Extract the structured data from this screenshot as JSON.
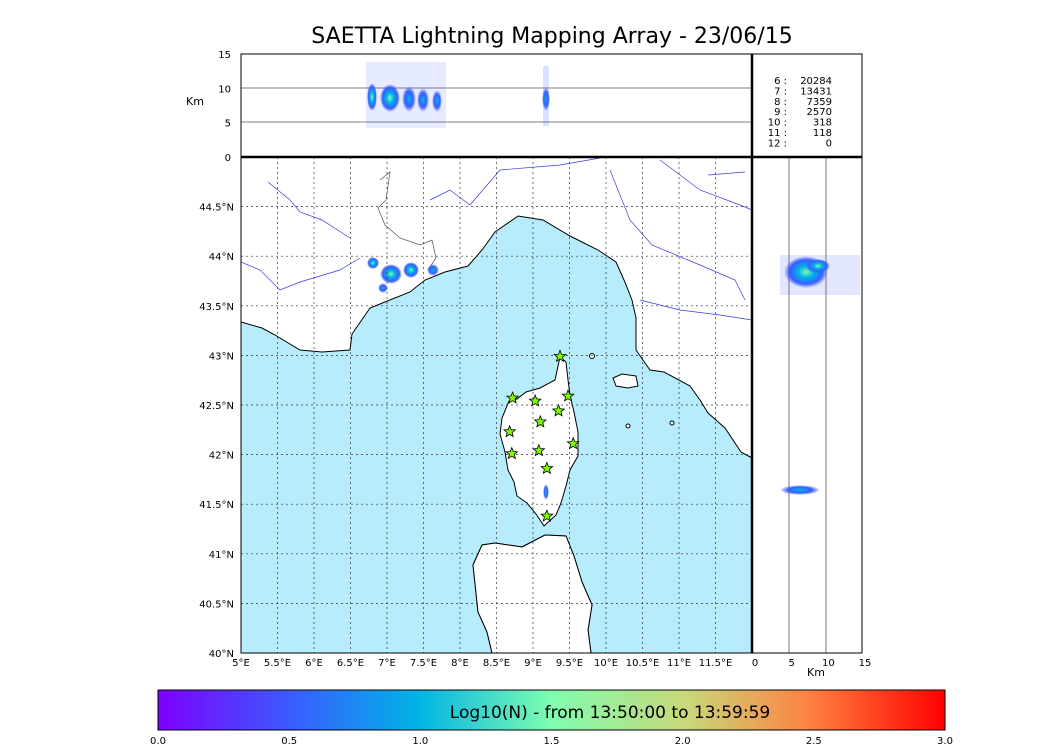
{
  "title": "SAETTA Lightning Mapping Array - 23/06/15",
  "colors": {
    "sea": "#b7ecfd",
    "station": "#7cfc00",
    "highlight": "#ff0000"
  },
  "alt_panel": {
    "ylabel": "Km",
    "yticks": [
      "0",
      "5",
      "10",
      "15"
    ],
    "counts": [
      {
        "label": "6 :",
        "value": "20284"
      },
      {
        "label": "7 :",
        "value": "13431"
      },
      {
        "label": "8 :",
        "value": "7359"
      },
      {
        "label": "9 :",
        "value": "2570"
      },
      {
        "label": "10 :",
        "value": "318"
      },
      {
        "label": "11 :",
        "value": "118"
      },
      {
        "label": "12 :",
        "value": "0"
      }
    ],
    "highlight_index": 1
  },
  "map_panel": {
    "xlim": [
      5,
      12
    ],
    "ylim": [
      40,
      45
    ],
    "xticks": [
      "5°E",
      "5.5°E",
      "6°E",
      "6.5°E",
      "7°E",
      "7.5°E",
      "8°E",
      "8.5°E",
      "9°E",
      "9.5°E",
      "10°E",
      "10.5°E",
      "11°E",
      "11.5°E"
    ],
    "yticks": [
      "40°N",
      "40.5°N",
      "41°N",
      "41.5°N",
      "42°N",
      "42.5°N",
      "43°N",
      "43.5°N",
      "44°N",
      "44.5°N"
    ],
    "stations": [
      {
        "lon": 9.37,
        "lat": 42.99
      },
      {
        "lon": 8.72,
        "lat": 42.57
      },
      {
        "lon": 9.03,
        "lat": 42.54
      },
      {
        "lon": 9.48,
        "lat": 42.59
      },
      {
        "lon": 9.1,
        "lat": 42.33
      },
      {
        "lon": 9.35,
        "lat": 42.44
      },
      {
        "lon": 8.68,
        "lat": 42.23
      },
      {
        "lon": 9.55,
        "lat": 42.11
      },
      {
        "lon": 8.71,
        "lat": 42.01
      },
      {
        "lon": 9.08,
        "lat": 42.04
      },
      {
        "lon": 9.19,
        "lat": 41.86
      },
      {
        "lon": 9.19,
        "lat": 41.38
      }
    ]
  },
  "side_panel": {
    "xlabel": "Km",
    "xticks": [
      "0",
      "5",
      "10",
      "15"
    ]
  },
  "colorbar": {
    "label": "Log10(N) - from 13:50:00 to 13:59:59",
    "ticks": [
      "0.0",
      "0.5",
      "1.0",
      "1.5",
      "2.0",
      "2.5",
      "3.0"
    ]
  }
}
